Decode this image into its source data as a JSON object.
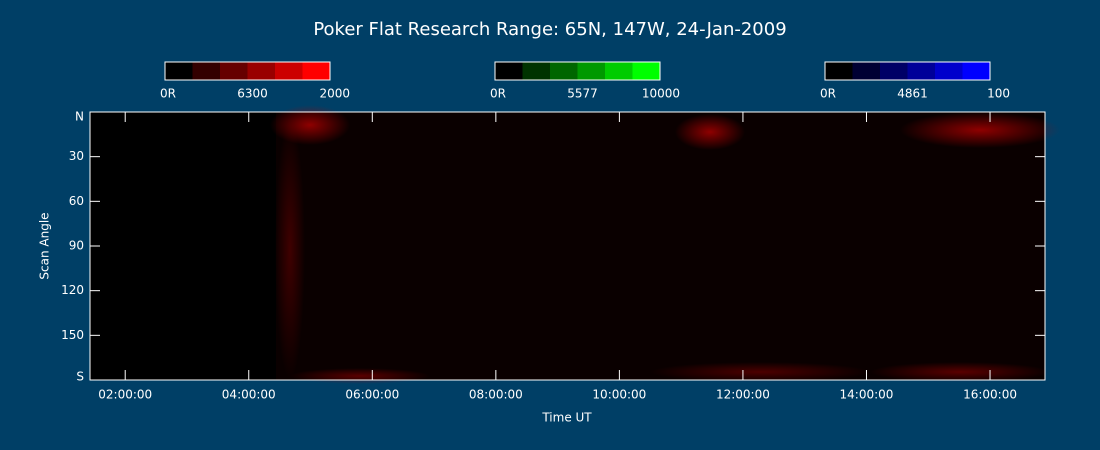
{
  "chart_data": {
    "type": "keogram",
    "title": "Poker Flat Research Range: 65N, 147W, 24-Jan-2009",
    "x_label": "Time UT",
    "y_label": "Scan Angle",
    "xlim": [
      1.43,
      16.89
    ],
    "xticks": [
      {
        "value": 2,
        "label": "02:00:00"
      },
      {
        "value": 4,
        "label": "04:00:00"
      },
      {
        "value": 6,
        "label": "06:00:00"
      },
      {
        "value": 8,
        "label": "08:00:00"
      },
      {
        "value": 10,
        "label": "10:00:00"
      },
      {
        "value": 12,
        "label": "12:00:00"
      },
      {
        "value": 14,
        "label": "14:00:00"
      },
      {
        "value": 16,
        "label": "16:00:00"
      }
    ],
    "ylim": [
      0,
      180
    ],
    "yticks": [
      {
        "value": 0,
        "label": "N"
      },
      30,
      60,
      90,
      120,
      150,
      {
        "value": 180,
        "label": "S"
      }
    ],
    "colorbars": [
      {
        "labels": [
          "0R",
          "6300",
          "2000"
        ],
        "colors": [
          "#000000",
          "#330000",
          "#660000",
          "#990000",
          "#cc0000",
          "#ff0000"
        ]
      },
      {
        "labels": [
          "0R",
          "5577",
          "10000"
        ],
        "colors": [
          "#000000",
          "#003300",
          "#006600",
          "#009900",
          "#00cc00",
          "#00ff00"
        ]
      },
      {
        "labels": [
          "0R",
          "4861",
          "100"
        ],
        "colors": [
          "#000000",
          "#000033",
          "#000066",
          "#000099",
          "#0000cc",
          "#0000ff"
        ]
      }
    ]
  }
}
